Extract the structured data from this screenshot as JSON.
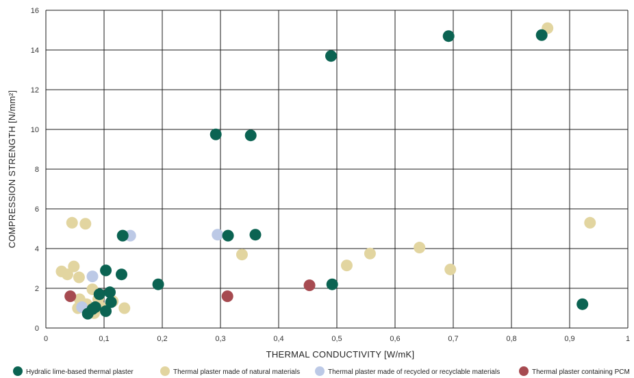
{
  "chart_data": {
    "type": "scatter",
    "xlabel": "THERMAL CONDUCTIVITY [W/mK]",
    "ylabel": "COMPRESSION STRENGTH [N/mm²]",
    "xlim": [
      0,
      1
    ],
    "ylim": [
      0,
      16
    ],
    "x_ticks": [
      0,
      0.1,
      0.2,
      0.3,
      0.4,
      0.5,
      0.6,
      0.7,
      0.8,
      0.9,
      1
    ],
    "x_tick_labels": [
      "0",
      "0,1",
      "0,2",
      "0,3",
      "0,4",
      "0,5",
      "0,6",
      "0,7",
      "0,8",
      "0,9",
      "1"
    ],
    "y_ticks": [
      0,
      2,
      4,
      6,
      8,
      10,
      12,
      14,
      16
    ],
    "y_tick_labels": [
      "0",
      "2",
      "4",
      "6",
      "8",
      "10",
      "12",
      "14",
      "16"
    ],
    "grid": true,
    "legend_position": "bottom",
    "series": [
      {
        "name": "Thermal plaster made of natural materials",
        "color": "#e2d5a0",
        "points": [
          [
            0.027,
            2.85
          ],
          [
            0.037,
            2.7
          ],
          [
            0.048,
            3.1
          ],
          [
            0.057,
            2.55
          ],
          [
            0.045,
            5.3
          ],
          [
            0.068,
            5.25
          ],
          [
            0.058,
            1.45
          ],
          [
            0.055,
            1.0
          ],
          [
            0.07,
            1.2
          ],
          [
            0.08,
            1.95
          ],
          [
            0.083,
            0.75
          ],
          [
            0.09,
            1.45
          ],
          [
            0.098,
            1.0
          ],
          [
            0.115,
            1.35
          ],
          [
            0.135,
            1.0
          ],
          [
            0.337,
            3.7
          ],
          [
            0.517,
            3.15
          ],
          [
            0.557,
            3.75
          ],
          [
            0.642,
            4.05
          ],
          [
            0.695,
            2.95
          ],
          [
            0.862,
            15.1
          ],
          [
            0.935,
            5.3
          ]
        ]
      },
      {
        "name": "Thermal plaster made of recycled or recyclable materials",
        "color": "#bcc9e6",
        "points": [
          [
            0.08,
            2.6
          ],
          [
            0.062,
            1.05
          ],
          [
            0.145,
            4.65
          ],
          [
            0.295,
            4.7
          ]
        ]
      },
      {
        "name": "Hydralic lime-based thermal plaster",
        "color": "#0b6352",
        "points": [
          [
            0.072,
            0.72
          ],
          [
            0.08,
            0.95
          ],
          [
            0.085,
            1.05
          ],
          [
            0.092,
            1.7
          ],
          [
            0.103,
            0.85
          ],
          [
            0.103,
            2.9
          ],
          [
            0.11,
            1.8
          ],
          [
            0.112,
            1.3
          ],
          [
            0.13,
            2.7
          ],
          [
            0.132,
            4.65
          ],
          [
            0.193,
            2.2
          ],
          [
            0.292,
            9.75
          ],
          [
            0.313,
            4.65
          ],
          [
            0.352,
            9.7
          ],
          [
            0.36,
            4.7
          ],
          [
            0.49,
            13.7
          ],
          [
            0.492,
            2.2
          ],
          [
            0.692,
            14.7
          ],
          [
            0.852,
            14.75
          ],
          [
            0.922,
            1.2
          ]
        ]
      },
      {
        "name": "Thermal plaster containing PCM",
        "color": "#a64a50",
        "points": [
          [
            0.042,
            1.6
          ],
          [
            0.312,
            1.6
          ],
          [
            0.453,
            2.15
          ]
        ]
      }
    ],
    "legend": [
      {
        "name": "Hydralic lime-based thermal plaster",
        "color": "#0b6352"
      },
      {
        "name": "Thermal plaster made of natural materials",
        "color": "#e2d5a0"
      },
      {
        "name": "Thermal plaster made of recycled or recyclable materials",
        "color": "#bcc9e6"
      },
      {
        "name": "Thermal plaster containing PCM",
        "color": "#a64a50"
      }
    ]
  }
}
